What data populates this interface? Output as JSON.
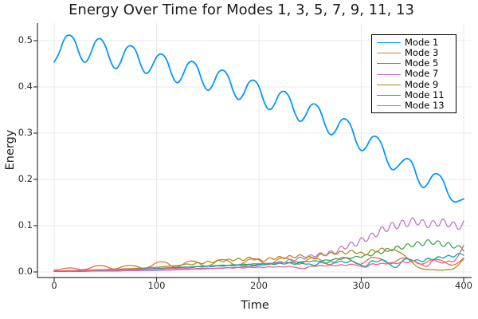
{
  "chart_data": {
    "type": "line",
    "title": "Energy Over Time for Modes 1, 3, 5, 7, 9, 11, 13",
    "xlabel": "Time",
    "ylabel": "Energy",
    "xlim": [
      -16,
      408
    ],
    "ylim": [
      -0.012,
      0.538
    ],
    "xticks": [
      0,
      100,
      200,
      300,
      400
    ],
    "xtick_labels": [
      "0",
      "100",
      "200",
      "300",
      "400"
    ],
    "yticks": [
      0.0,
      0.1,
      0.2,
      0.3,
      0.4,
      0.5
    ],
    "ytick_labels": [
      "0.0",
      "0.1",
      "0.2",
      "0.3",
      "0.4",
      "0.5"
    ],
    "grid": true,
    "legend_position": "top-right",
    "x_start": 0,
    "x_step": 5,
    "style": {
      "background": "#ffffff",
      "grid_color": "#e8e8e8",
      "axis_color": "#383838",
      "text_color": "#1c1c1c"
    },
    "series": [
      {
        "name": "Mode 1",
        "color": "#009AFA",
        "width": 1.8,
        "values": [
          0.454,
          0.472,
          0.507,
          0.514,
          0.504,
          0.467,
          0.449,
          0.467,
          0.5,
          0.507,
          0.491,
          0.454,
          0.435,
          0.452,
          0.485,
          0.491,
          0.48,
          0.443,
          0.425,
          0.441,
          0.467,
          0.473,
          0.461,
          0.424,
          0.405,
          0.42,
          0.451,
          0.457,
          0.445,
          0.408,
          0.389,
          0.403,
          0.433,
          0.438,
          0.426,
          0.388,
          0.369,
          0.383,
          0.412,
          0.416,
          0.404,
          0.366,
          0.347,
          0.36,
          0.388,
          0.392,
          0.379,
          0.342,
          0.322,
          0.334,
          0.361,
          0.365,
          0.351,
          0.314,
          0.293,
          0.304,
          0.33,
          0.332,
          0.318,
          0.279,
          0.259,
          0.269,
          0.293,
          0.294,
          0.278,
          0.24,
          0.218,
          0.226,
          0.24,
          0.247,
          0.238,
          0.2,
          0.179,
          0.19,
          0.212,
          0.213,
          0.2,
          0.166,
          0.15,
          0.153,
          0.158
        ]
      },
      {
        "name": "Mode 3",
        "color": "#E36F47",
        "width": 1.3,
        "values": [
          0.004,
          0.005,
          0.008,
          0.009,
          0.008,
          0.005,
          0.005,
          0.008,
          0.013,
          0.014,
          0.013,
          0.007,
          0.006,
          0.01,
          0.014,
          0.014,
          0.013,
          0.008,
          0.008,
          0.013,
          0.021,
          0.022,
          0.021,
          0.011,
          0.01,
          0.015,
          0.023,
          0.024,
          0.022,
          0.013,
          0.012,
          0.017,
          0.026,
          0.027,
          0.025,
          0.015,
          0.014,
          0.019,
          0.028,
          0.029,
          0.027,
          0.017,
          0.015,
          0.021,
          0.03,
          0.031,
          0.028,
          0.018,
          0.016,
          0.022,
          0.031,
          0.03,
          0.027,
          0.018,
          0.015,
          0.022,
          0.032,
          0.031,
          0.026,
          0.017,
          0.016,
          0.024,
          0.033,
          0.03,
          0.028,
          0.019,
          0.017,
          0.025,
          0.031,
          0.029,
          0.026,
          0.018,
          0.016,
          0.023,
          0.028,
          0.027,
          0.024,
          0.016,
          0.014,
          0.02,
          0.03
        ]
      },
      {
        "name": "Mode 5",
        "color": "#3DA44E",
        "width": 1.3,
        "values": [
          0.001,
          0.001,
          0.002,
          0.002,
          0.002,
          0.002,
          0.002,
          0.003,
          0.003,
          0.003,
          0.003,
          0.004,
          0.004,
          0.004,
          0.005,
          0.005,
          0.005,
          0.006,
          0.006,
          0.006,
          0.007,
          0.007,
          0.008,
          0.008,
          0.009,
          0.01,
          0.01,
          0.011,
          0.012,
          0.012,
          0.013,
          0.013,
          0.014,
          0.015,
          0.014,
          0.016,
          0.015,
          0.017,
          0.016,
          0.018,
          0.017,
          0.019,
          0.018,
          0.02,
          0.019,
          0.021,
          0.02,
          0.022,
          0.021,
          0.023,
          0.022,
          0.025,
          0.022,
          0.027,
          0.024,
          0.03,
          0.026,
          0.032,
          0.028,
          0.035,
          0.03,
          0.04,
          0.032,
          0.048,
          0.036,
          0.055,
          0.042,
          0.06,
          0.045,
          0.065,
          0.05,
          0.07,
          0.052,
          0.075,
          0.055,
          0.072,
          0.05,
          0.068,
          0.048,
          0.06,
          0.045
        ]
      },
      {
        "name": "Mode 7",
        "color": "#C371D2",
        "width": 1.3,
        "values": [
          0.001,
          0.001,
          0.001,
          0.001,
          0.001,
          0.001,
          0.001,
          0.002,
          0.002,
          0.002,
          0.002,
          0.002,
          0.002,
          0.002,
          0.003,
          0.003,
          0.003,
          0.003,
          0.003,
          0.003,
          0.003,
          0.004,
          0.004,
          0.004,
          0.005,
          0.005,
          0.005,
          0.006,
          0.006,
          0.006,
          0.007,
          0.007,
          0.008,
          0.008,
          0.009,
          0.01,
          0.01,
          0.011,
          0.012,
          0.013,
          0.014,
          0.016,
          0.02,
          0.015,
          0.025,
          0.018,
          0.03,
          0.022,
          0.035,
          0.025,
          0.04,
          0.03,
          0.045,
          0.032,
          0.05,
          0.035,
          0.06,
          0.045,
          0.07,
          0.05,
          0.08,
          0.06,
          0.09,
          0.07,
          0.105,
          0.08,
          0.115,
          0.085,
          0.12,
          0.09,
          0.125,
          0.095,
          0.12,
          0.088,
          0.118,
          0.092,
          0.122,
          0.09,
          0.115,
          0.085,
          0.11
        ]
      },
      {
        "name": "Mode 9",
        "color": "#AC8E18",
        "width": 1.3,
        "values": [
          0.002,
          0.002,
          0.003,
          0.003,
          0.003,
          0.004,
          0.004,
          0.004,
          0.005,
          0.005,
          0.005,
          0.006,
          0.006,
          0.006,
          0.007,
          0.007,
          0.008,
          0.008,
          0.009,
          0.01,
          0.01,
          0.011,
          0.012,
          0.013,
          0.014,
          0.015,
          0.018,
          0.014,
          0.022,
          0.016,
          0.025,
          0.018,
          0.028,
          0.02,
          0.03,
          0.022,
          0.032,
          0.022,
          0.035,
          0.024,
          0.03,
          0.02,
          0.033,
          0.025,
          0.036,
          0.026,
          0.038,
          0.028,
          0.04,
          0.03,
          0.035,
          0.025,
          0.042,
          0.032,
          0.045,
          0.035,
          0.048,
          0.036,
          0.05,
          0.038,
          0.045,
          0.033,
          0.052,
          0.04,
          0.055,
          0.042,
          0.05,
          0.045,
          0.04,
          0.03,
          0.02,
          0.01,
          0.006,
          0.005,
          0.005,
          0.004,
          0.004,
          0.005,
          0.006,
          0.015,
          0.028
        ]
      },
      {
        "name": "Mode 11",
        "color": "#00AAAE",
        "width": 1.3,
        "values": [
          0.001,
          0.001,
          0.001,
          0.002,
          0.002,
          0.002,
          0.002,
          0.003,
          0.003,
          0.003,
          0.004,
          0.004,
          0.004,
          0.005,
          0.005,
          0.005,
          0.006,
          0.006,
          0.007,
          0.007,
          0.008,
          0.008,
          0.009,
          0.009,
          0.01,
          0.01,
          0.011,
          0.009,
          0.012,
          0.01,
          0.013,
          0.011,
          0.014,
          0.012,
          0.015,
          0.013,
          0.016,
          0.012,
          0.017,
          0.013,
          0.018,
          0.014,
          0.019,
          0.015,
          0.02,
          0.016,
          0.021,
          0.015,
          0.022,
          0.016,
          0.018,
          0.012,
          0.023,
          0.017,
          0.024,
          0.018,
          0.025,
          0.018,
          0.026,
          0.019,
          0.015,
          0.01,
          0.027,
          0.02,
          0.028,
          0.022,
          0.012,
          0.008,
          0.025,
          0.03,
          0.022,
          0.028,
          0.02,
          0.032,
          0.024,
          0.035,
          0.028,
          0.038,
          0.03,
          0.042,
          0.036
        ]
      },
      {
        "name": "Mode 13",
        "color": "#ED5F92",
        "width": 1.3,
        "values": [
          0.002,
          0.002,
          0.002,
          0.002,
          0.003,
          0.003,
          0.003,
          0.003,
          0.003,
          0.004,
          0.004,
          0.004,
          0.004,
          0.005,
          0.005,
          0.005,
          0.005,
          0.005,
          0.006,
          0.006,
          0.006,
          0.006,
          0.007,
          0.007,
          0.007,
          0.007,
          0.008,
          0.006,
          0.008,
          0.007,
          0.009,
          0.007,
          0.009,
          0.008,
          0.01,
          0.008,
          0.01,
          0.008,
          0.011,
          0.009,
          0.011,
          0.009,
          0.012,
          0.01,
          0.012,
          0.01,
          0.013,
          0.01,
          0.008,
          0.006,
          0.014,
          0.011,
          0.015,
          0.012,
          0.016,
          0.012,
          0.017,
          0.013,
          0.018,
          0.014,
          0.012,
          0.009,
          0.019,
          0.015,
          0.02,
          0.016,
          0.022,
          0.016,
          0.024,
          0.018,
          0.026,
          0.02,
          0.015,
          0.01,
          0.028,
          0.022,
          0.018,
          0.025,
          0.02,
          0.035,
          0.058
        ]
      }
    ]
  }
}
